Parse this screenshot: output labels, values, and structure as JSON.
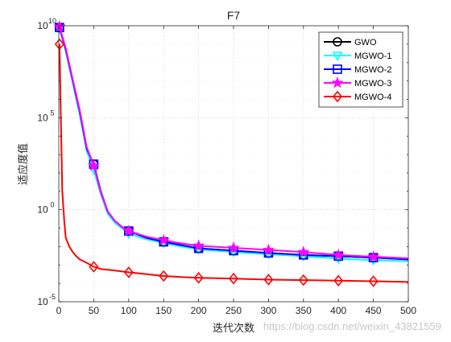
{
  "chart_data": {
    "type": "line",
    "title": "F7",
    "xlabel": "迭代次数",
    "ylabel": "适应度值",
    "xlim": [
      0,
      500
    ],
    "ylim": [
      1e-05,
      10000000000.0
    ],
    "yscale": "log",
    "grid": true,
    "legend_position": "top-right",
    "x_ticks": [
      "0",
      "50",
      "100",
      "150",
      "200",
      "250",
      "300",
      "350",
      "400",
      "450",
      "500"
    ],
    "y_ticks": [
      {
        "base": "10",
        "exp": "-5"
      },
      {
        "base": "10",
        "exp": "0"
      },
      {
        "base": "10",
        "exp": "5"
      },
      {
        "base": "10",
        "exp": "10"
      }
    ],
    "series": [
      {
        "name": "GWO",
        "color": "#000000",
        "marker": "circle",
        "x": [
          1,
          10,
          20,
          30,
          40,
          50,
          60,
          70,
          80,
          90,
          100,
          125,
          150,
          175,
          200,
          250,
          300,
          350,
          400,
          450,
          500
        ],
        "y": [
          8000000000.0,
          500000000.0,
          10000000.0,
          200000.0,
          2000.0,
          300.0,
          10,
          0.8,
          0.25,
          0.12,
          0.07,
          0.03,
          0.018,
          0.012,
          0.008,
          0.006,
          0.0045,
          0.0035,
          0.003,
          0.0025,
          0.002
        ],
        "marker_x": [
          1,
          50,
          100,
          150,
          200,
          250,
          300,
          350,
          400,
          450
        ],
        "marker_y": [
          8000000000.0,
          300.0,
          0.07,
          0.018,
          0.008,
          0.006,
          0.0045,
          0.0035,
          0.003,
          0.0025
        ]
      },
      {
        "name": "MGWO-1",
        "color": "#00ffff",
        "marker": "triangle-down",
        "x": [
          1,
          10,
          20,
          30,
          40,
          50,
          60,
          70,
          80,
          90,
          100,
          125,
          150,
          175,
          200,
          250,
          300,
          350,
          400,
          450,
          500
        ],
        "y": [
          7000000000.0,
          400000000.0,
          8000000.0,
          150000.0,
          1500.0,
          150.0,
          7,
          0.6,
          0.2,
          0.1,
          0.05,
          0.025,
          0.016,
          0.01,
          0.007,
          0.005,
          0.0038,
          0.003,
          0.0022,
          0.0018,
          0.0016
        ],
        "marker_x": [
          1,
          50,
          100,
          150,
          200,
          250,
          300,
          350,
          400,
          450
        ],
        "marker_y": [
          7000000000.0,
          150.0,
          0.05,
          0.016,
          0.007,
          0.005,
          0.0038,
          0.003,
          0.0022,
          0.0018
        ]
      },
      {
        "name": "MGWO-2",
        "color": "#0000ff",
        "marker": "square",
        "x": [
          1,
          10,
          20,
          30,
          40,
          50,
          60,
          70,
          80,
          90,
          100,
          125,
          150,
          175,
          200,
          250,
          300,
          350,
          400,
          450,
          500
        ],
        "y": [
          8000000000.0,
          500000000.0,
          10000000.0,
          200000.0,
          2000.0,
          300.0,
          10,
          0.8,
          0.25,
          0.12,
          0.07,
          0.03,
          0.018,
          0.012,
          0.008,
          0.006,
          0.0045,
          0.0035,
          0.003,
          0.0025,
          0.002
        ],
        "marker_x": [
          1,
          50,
          100,
          150,
          200,
          250,
          300,
          350,
          400,
          450
        ],
        "marker_y": [
          8000000000.0,
          300.0,
          0.07,
          0.018,
          0.008,
          0.006,
          0.0045,
          0.0035,
          0.003,
          0.0025
        ]
      },
      {
        "name": "MGWO-3",
        "color": "#ff00ff",
        "marker": "star",
        "x": [
          1,
          10,
          20,
          30,
          40,
          50,
          60,
          70,
          80,
          90,
          100,
          125,
          150,
          175,
          200,
          250,
          300,
          350,
          400,
          450,
          500
        ],
        "y": [
          9000000000.0,
          600000000.0,
          12000000.0,
          250000.0,
          2500.0,
          250.0,
          9,
          0.8,
          0.25,
          0.12,
          0.07,
          0.035,
          0.022,
          0.015,
          0.011,
          0.0085,
          0.0065,
          0.005,
          0.0035,
          0.0028,
          0.0023
        ],
        "marker_x": [
          1,
          50,
          100,
          150,
          200,
          250,
          300,
          350,
          400,
          450
        ],
        "marker_y": [
          9000000000.0,
          250.0,
          0.07,
          0.022,
          0.011,
          0.0085,
          0.0065,
          0.005,
          0.0035,
          0.0028
        ]
      },
      {
        "name": "MGWO-4",
        "color": "#ff0000",
        "marker": "diamond",
        "x": [
          1,
          3,
          5,
          8,
          10,
          15,
          20,
          25,
          30,
          40,
          50,
          60,
          80,
          100,
          125,
          150,
          175,
          200,
          250,
          300,
          350,
          400,
          450,
          500
        ],
        "y": [
          1000000000.0,
          100000.0,
          10,
          0.2,
          0.03,
          0.01,
          0.005,
          0.003,
          0.002,
          0.0013,
          0.0008,
          0.0006,
          0.0005,
          0.0004,
          0.00032,
          0.00025,
          0.00022,
          0.0002,
          0.00018,
          0.00016,
          0.00015,
          0.00014,
          0.00013,
          0.00012
        ],
        "marker_x": [
          1,
          50,
          100,
          150,
          200,
          250,
          300,
          350,
          400,
          450
        ],
        "marker_y": [
          1000000000.0,
          0.0008,
          0.0004,
          0.00025,
          0.0002,
          0.00018,
          0.00016,
          0.00015,
          0.00014,
          0.00013
        ]
      }
    ]
  },
  "watermark": "https://blog.csdn.net/weixin_43821559"
}
